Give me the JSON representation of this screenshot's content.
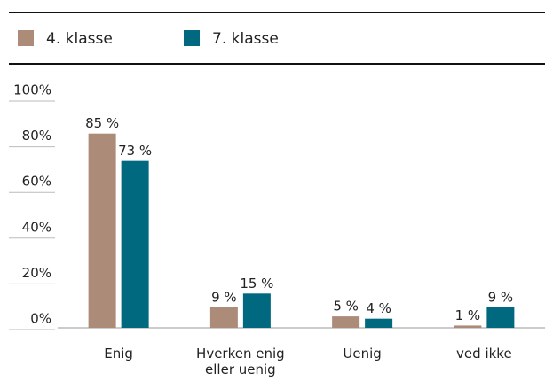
{
  "chart_data": {
    "type": "bar",
    "categories": [
      "Enig",
      "Hverken enig eller uenig",
      "Uenig",
      "ved ikke"
    ],
    "series": [
      {
        "name": "4. klasse",
        "color": "#ad8b79",
        "values": [
          85,
          9,
          5,
          1
        ],
        "value_labels": [
          "85 %",
          "9 %",
          "5 %",
          "1 %"
        ]
      },
      {
        "name": "7. klasse",
        "color": "#00687f",
        "values": [
          73,
          15,
          4,
          9
        ],
        "value_labels": [
          "73 %",
          "15 %",
          "4 %",
          "9 %"
        ]
      }
    ],
    "ylim": [
      0,
      100
    ],
    "yticks": [
      {
        "value": 0,
        "label": "0%"
      },
      {
        "value": 20,
        "label": "20%"
      },
      {
        "value": 40,
        "label": "40%"
      },
      {
        "value": 60,
        "label": "60%"
      },
      {
        "value": 80,
        "label": "80%"
      },
      {
        "value": 100,
        "label": "100%"
      }
    ],
    "legend": "top"
  }
}
